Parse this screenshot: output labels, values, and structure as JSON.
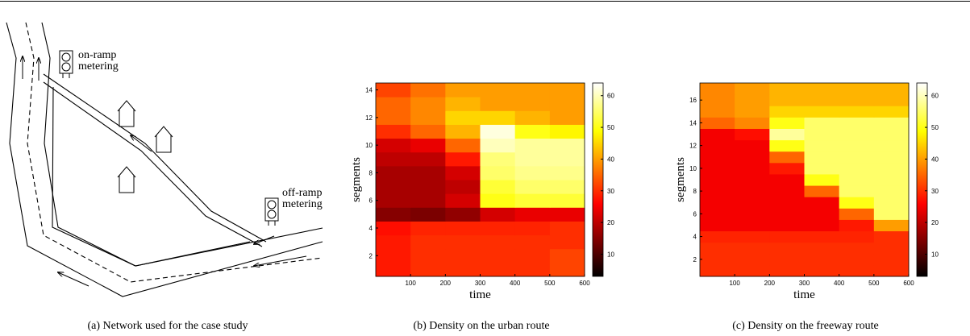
{
  "diagram": {
    "caption": "(a)  Network used for the case study",
    "on_ramp": [
      "on-ramp",
      "metering"
    ],
    "off_ramp": [
      "off-ramp",
      "metering"
    ]
  },
  "chart_data": [
    {
      "type": "heatmap",
      "caption": "(b)  Density on the urban route",
      "x_label": "time",
      "y_label": "segments",
      "x": [
        50,
        150,
        250,
        350,
        450,
        550
      ],
      "y": [
        1,
        2,
        3,
        4,
        5,
        6,
        7,
        8,
        9,
        10,
        11,
        12,
        13,
        14
      ],
      "z": [
        [
          28,
          30,
          30,
          30,
          30,
          32
        ],
        [
          28,
          30,
          30,
          30,
          30,
          32
        ],
        [
          28,
          30,
          30,
          30,
          30,
          30
        ],
        [
          27,
          29,
          29,
          29,
          29,
          30
        ],
        [
          15,
          14,
          16,
          22,
          24,
          24
        ],
        [
          18,
          18,
          22,
          50,
          52,
          52
        ],
        [
          18,
          18,
          20,
          52,
          55,
          55
        ],
        [
          18,
          18,
          22,
          55,
          57,
          57
        ],
        [
          20,
          20,
          28,
          56,
          58,
          58
        ],
        [
          22,
          24,
          35,
          60,
          58,
          58
        ],
        [
          30,
          35,
          42,
          62,
          50,
          48
        ],
        [
          35,
          38,
          45,
          45,
          42,
          40
        ],
        [
          35,
          38,
          42,
          40,
          40,
          40
        ],
        [
          32,
          36,
          40,
          40,
          40,
          40
        ]
      ],
      "xlim": [
        0,
        600
      ],
      "xticks": [
        100,
        200,
        300,
        400,
        500,
        600
      ],
      "ylim": [
        0.5,
        14.5
      ],
      "yticks": [
        2,
        4,
        6,
        8,
        10,
        12,
        14
      ],
      "zlim": [
        3,
        64
      ],
      "colorbar_ticks": [
        10,
        20,
        30,
        40,
        50,
        60
      ]
    },
    {
      "type": "heatmap",
      "caption": "(c)  Density on the freeway route",
      "x_label": "time",
      "y_label": "segments",
      "x": [
        50,
        150,
        250,
        350,
        450,
        550
      ],
      "y": [
        1,
        2,
        3,
        4,
        5,
        6,
        7,
        8,
        9,
        10,
        11,
        12,
        13,
        14,
        15,
        16,
        17
      ],
      "z": [
        [
          30,
          30,
          30,
          30,
          30,
          30
        ],
        [
          30,
          30,
          30,
          30,
          30,
          30
        ],
        [
          30,
          30,
          30,
          30,
          30,
          30
        ],
        [
          29,
          29,
          29,
          29,
          29,
          30
        ],
        [
          25,
          25,
          25,
          25,
          28,
          40
        ],
        [
          25,
          25,
          25,
          25,
          35,
          55
        ],
        [
          25,
          25,
          25,
          25,
          50,
          55
        ],
        [
          25,
          25,
          25,
          35,
          55,
          55
        ],
        [
          25,
          25,
          25,
          50,
          55,
          55
        ],
        [
          25,
          25,
          28,
          55,
          55,
          55
        ],
        [
          25,
          25,
          35,
          55,
          55,
          55
        ],
        [
          25,
          25,
          50,
          55,
          55,
          55
        ],
        [
          25,
          27,
          58,
          55,
          55,
          55
        ],
        [
          35,
          38,
          50,
          55,
          55,
          55
        ],
        [
          38,
          40,
          45,
          45,
          45,
          45
        ],
        [
          38,
          40,
          42,
          42,
          42,
          42
        ],
        [
          38,
          40,
          42,
          42,
          42,
          42
        ]
      ],
      "xlim": [
        0,
        600
      ],
      "xticks": [
        100,
        200,
        300,
        400,
        500,
        600
      ],
      "ylim": [
        0.5,
        17.5
      ],
      "yticks": [
        2,
        4,
        6,
        8,
        10,
        12,
        14,
        16
      ],
      "zlim": [
        3,
        64
      ],
      "colorbar_ticks": [
        10,
        20,
        30,
        40,
        50,
        60
      ]
    }
  ]
}
